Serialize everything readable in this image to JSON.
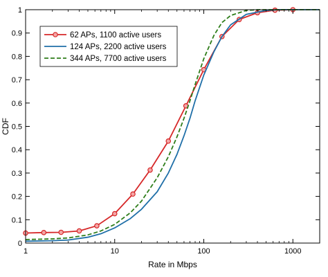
{
  "chart_data": {
    "type": "line",
    "xlabel": "Rate in Mbps",
    "ylabel": "CDF",
    "xscale": "log",
    "xlim": [
      1,
      2000
    ],
    "ylim": [
      0,
      1
    ],
    "grid": false,
    "legend_position": "top-left",
    "x_ticks": [
      {
        "value": 1,
        "label": "1"
      },
      {
        "value": 10,
        "label": "10"
      },
      {
        "value": 100,
        "label": "100"
      },
      {
        "value": 1000,
        "label": "1000"
      }
    ],
    "y_ticks": [
      {
        "value": 0,
        "label": "0"
      },
      {
        "value": 0.1,
        "label": "0.1"
      },
      {
        "value": 0.2,
        "label": "0.2"
      },
      {
        "value": 0.3,
        "label": "0.3"
      },
      {
        "value": 0.4,
        "label": "0.4"
      },
      {
        "value": 0.5,
        "label": "0.5"
      },
      {
        "value": 0.6,
        "label": "0.6"
      },
      {
        "value": 0.7,
        "label": "0.7"
      },
      {
        "value": 0.8,
        "label": "0.8"
      },
      {
        "value": 0.9,
        "label": "0.9"
      },
      {
        "value": 1,
        "label": "1"
      }
    ],
    "series": [
      {
        "name": "62 APs, 1100 active users",
        "color": "#d62728",
        "style": "solid",
        "marker": "circle",
        "points": [
          {
            "x": 1,
            "y": 0.043
          },
          {
            "x": 1.6,
            "y": 0.045
          },
          {
            "x": 2.5,
            "y": 0.046
          },
          {
            "x": 4,
            "y": 0.052
          },
          {
            "x": 6.3,
            "y": 0.074
          },
          {
            "x": 10,
            "y": 0.126
          },
          {
            "x": 16,
            "y": 0.21
          },
          {
            "x": 25,
            "y": 0.313
          },
          {
            "x": 40,
            "y": 0.437
          },
          {
            "x": 63,
            "y": 0.588
          },
          {
            "x": 100,
            "y": 0.743
          },
          {
            "x": 160,
            "y": 0.885
          },
          {
            "x": 250,
            "y": 0.958
          },
          {
            "x": 400,
            "y": 0.987
          },
          {
            "x": 630,
            "y": 0.998
          },
          {
            "x": 1000,
            "y": 1.0
          }
        ]
      },
      {
        "name": "124 APs, 2200 active users",
        "color": "#1f6fa8",
        "style": "solid",
        "marker": "none",
        "points": [
          {
            "x": 1,
            "y": 0.008
          },
          {
            "x": 2,
            "y": 0.01
          },
          {
            "x": 3,
            "y": 0.013
          },
          {
            "x": 5,
            "y": 0.025
          },
          {
            "x": 7,
            "y": 0.04
          },
          {
            "x": 10,
            "y": 0.065
          },
          {
            "x": 15,
            "y": 0.105
          },
          {
            "x": 20,
            "y": 0.145
          },
          {
            "x": 30,
            "y": 0.22
          },
          {
            "x": 40,
            "y": 0.3
          },
          {
            "x": 50,
            "y": 0.38
          },
          {
            "x": 60,
            "y": 0.46
          },
          {
            "x": 70,
            "y": 0.535
          },
          {
            "x": 80,
            "y": 0.61
          },
          {
            "x": 100,
            "y": 0.72
          },
          {
            "x": 130,
            "y": 0.82
          },
          {
            "x": 160,
            "y": 0.885
          },
          {
            "x": 200,
            "y": 0.935
          },
          {
            "x": 300,
            "y": 0.98
          },
          {
            "x": 500,
            "y": 0.997
          },
          {
            "x": 700,
            "y": 1.0
          },
          {
            "x": 2000,
            "y": 1.0
          }
        ]
      },
      {
        "name": "344 APs, 7700 active users",
        "color": "#2e7d1a",
        "style": "dashed",
        "marker": "none",
        "points": [
          {
            "x": 1,
            "y": 0.015
          },
          {
            "x": 2,
            "y": 0.018
          },
          {
            "x": 3,
            "y": 0.022
          },
          {
            "x": 5,
            "y": 0.035
          },
          {
            "x": 7,
            "y": 0.052
          },
          {
            "x": 10,
            "y": 0.08
          },
          {
            "x": 15,
            "y": 0.13
          },
          {
            "x": 20,
            "y": 0.18
          },
          {
            "x": 30,
            "y": 0.28
          },
          {
            "x": 40,
            "y": 0.37
          },
          {
            "x": 50,
            "y": 0.455
          },
          {
            "x": 60,
            "y": 0.535
          },
          {
            "x": 70,
            "y": 0.61
          },
          {
            "x": 80,
            "y": 0.68
          },
          {
            "x": 100,
            "y": 0.79
          },
          {
            "x": 130,
            "y": 0.89
          },
          {
            "x": 160,
            "y": 0.945
          },
          {
            "x": 200,
            "y": 0.975
          },
          {
            "x": 300,
            "y": 0.997
          },
          {
            "x": 400,
            "y": 1.0
          },
          {
            "x": 2000,
            "y": 1.0
          }
        ]
      }
    ]
  }
}
